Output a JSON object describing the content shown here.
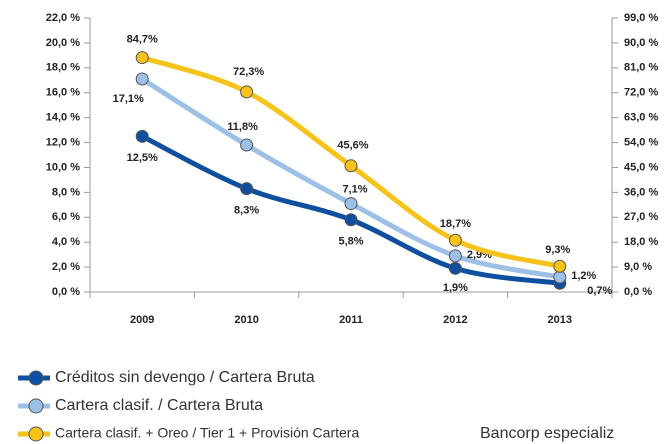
{
  "chart_data": {
    "type": "line",
    "categories": [
      "2009",
      "2010",
      "2011",
      "2012",
      "2013"
    ],
    "ylim": [
      0,
      22
    ],
    "yticks": [
      {
        "value": 0,
        "label": "0,0 %"
      },
      {
        "value": 2,
        "label": "2,0 %"
      },
      {
        "value": 4,
        "label": "4,0 %"
      },
      {
        "value": 6,
        "label": "6,0 %"
      },
      {
        "value": 8,
        "label": "8,0 %"
      },
      {
        "value": 10,
        "label": "10,0 %"
      },
      {
        "value": 12,
        "label": "12,0 %"
      },
      {
        "value": 14,
        "label": "14,0 %"
      },
      {
        "value": 16,
        "label": "16,0 %"
      },
      {
        "value": 18,
        "label": "18,0 %"
      },
      {
        "value": 20,
        "label": "20,0 %"
      },
      {
        "value": 22,
        "label": "22,0 %"
      }
    ],
    "y2lim": [
      0,
      99
    ],
    "y2ticks": [
      {
        "value": 0,
        "label": "0,0 %"
      },
      {
        "value": 9,
        "label": "9,0 %"
      },
      {
        "value": 18,
        "label": "18,0 %"
      },
      {
        "value": 27,
        "label": "27,0 %"
      },
      {
        "value": 36,
        "label": "36,0 %"
      },
      {
        "value": 45,
        "label": "45,0 %"
      },
      {
        "value": 54,
        "label": "54,0 %"
      },
      {
        "value": 63,
        "label": "63,0 %"
      },
      {
        "value": 72,
        "label": "72,0 %"
      },
      {
        "value": 81,
        "label": "81,0 %"
      },
      {
        "value": 90,
        "label": "90,0 %"
      },
      {
        "value": 99,
        "label": "99,0 %"
      }
    ],
    "series": [
      {
        "name": "Créditos sin devengo / Cartera Bruta",
        "color": "#0f4fa0",
        "values": [
          12.5,
          8.3,
          5.8,
          1.9,
          0.7
        ],
        "value_labels": [
          "12,5%",
          "8,3%",
          "5,8%",
          "1,9%",
          "0,7%"
        ]
      },
      {
        "name": "Cartera clasif. / Cartera Bruta",
        "color": "#9dc0e6",
        "values": [
          17.1,
          11.8,
          7.1,
          2.9,
          1.2
        ],
        "value_labels": [
          "17,1%",
          "11,8%",
          "7,1%",
          "2,9%",
          "1,2%"
        ]
      },
      {
        "name": "Cartera clasif.  + Oreo / Tier 1 + Provisión Cartera",
        "color": "#f7c21a",
        "axis": "y2",
        "values": [
          84.7,
          72.3,
          45.6,
          18.7,
          9.3
        ],
        "value_labels": [
          "84,7%",
          "72,3%",
          "45,6%",
          "18,7%",
          "9,3%"
        ]
      }
    ],
    "side_text": "Bancorp especializ"
  }
}
